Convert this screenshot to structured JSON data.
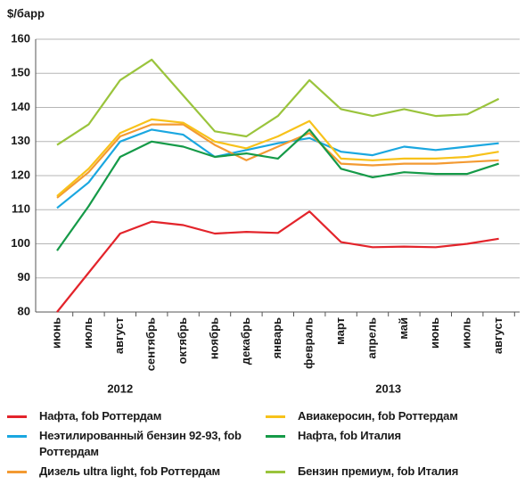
{
  "chart_data": {
    "type": "line",
    "y_label": "$/барр",
    "categories": [
      "июнь",
      "июль",
      "август",
      "сентябрь",
      "октябрь",
      "ноябрь",
      "декабрь",
      "январь",
      "февраль",
      "март",
      "апрель",
      "май",
      "июнь",
      "июль",
      "август"
    ],
    "year_groups": [
      "2012",
      "2013"
    ],
    "ylim": [
      80,
      160
    ],
    "yticks": [
      80,
      90,
      100,
      110,
      120,
      130,
      140,
      150,
      160
    ],
    "grid": true,
    "series": [
      {
        "name": "Нафта, fob Роттердам",
        "color": "#e3242b",
        "values": [
          80,
          91.5,
          103,
          106.5,
          105.5,
          103,
          103.5,
          103.2,
          109.5,
          100.5,
          99,
          99.2,
          99,
          100,
          101.5
        ]
      },
      {
        "name": "Неэтилированный бензин 92-93, fob Роттердам",
        "color": "#1aa7e0",
        "values": [
          110.5,
          118,
          130,
          133.5,
          132,
          125.5,
          127.5,
          129.5,
          131,
          127,
          126,
          128.5,
          127.5,
          128.5,
          129.5
        ]
      },
      {
        "name": "Дизель ultra light, fob Роттердам",
        "color": "#f39a32",
        "values": [
          113.5,
          121,
          131.5,
          135,
          135,
          129,
          124.5,
          128.5,
          132.5,
          123.5,
          123,
          123.5,
          123.5,
          124,
          124.5
        ]
      },
      {
        "name": "Авиакеросин, fob Роттердам",
        "color": "#f7c21a",
        "values": [
          114,
          122,
          132.5,
          136.5,
          135.5,
          130,
          128,
          131.5,
          136,
          125,
          124.5,
          125,
          125,
          125.5,
          127
        ]
      },
      {
        "name": "Нафта, fob Италия",
        "color": "#159a48",
        "values": [
          98,
          111,
          125.5,
          130,
          128.5,
          125.5,
          126.5,
          125,
          133.5,
          122,
          119.5,
          121,
          120.5,
          120.5,
          123.5
        ]
      },
      {
        "name": "Бензин премиум, fob Италия",
        "color": "#9ac43c",
        "values": [
          129,
          135,
          148,
          154,
          143.5,
          133,
          131.5,
          137.5,
          148,
          139.5,
          137.5,
          139.5,
          137.5,
          138,
          142.5
        ]
      }
    ]
  }
}
